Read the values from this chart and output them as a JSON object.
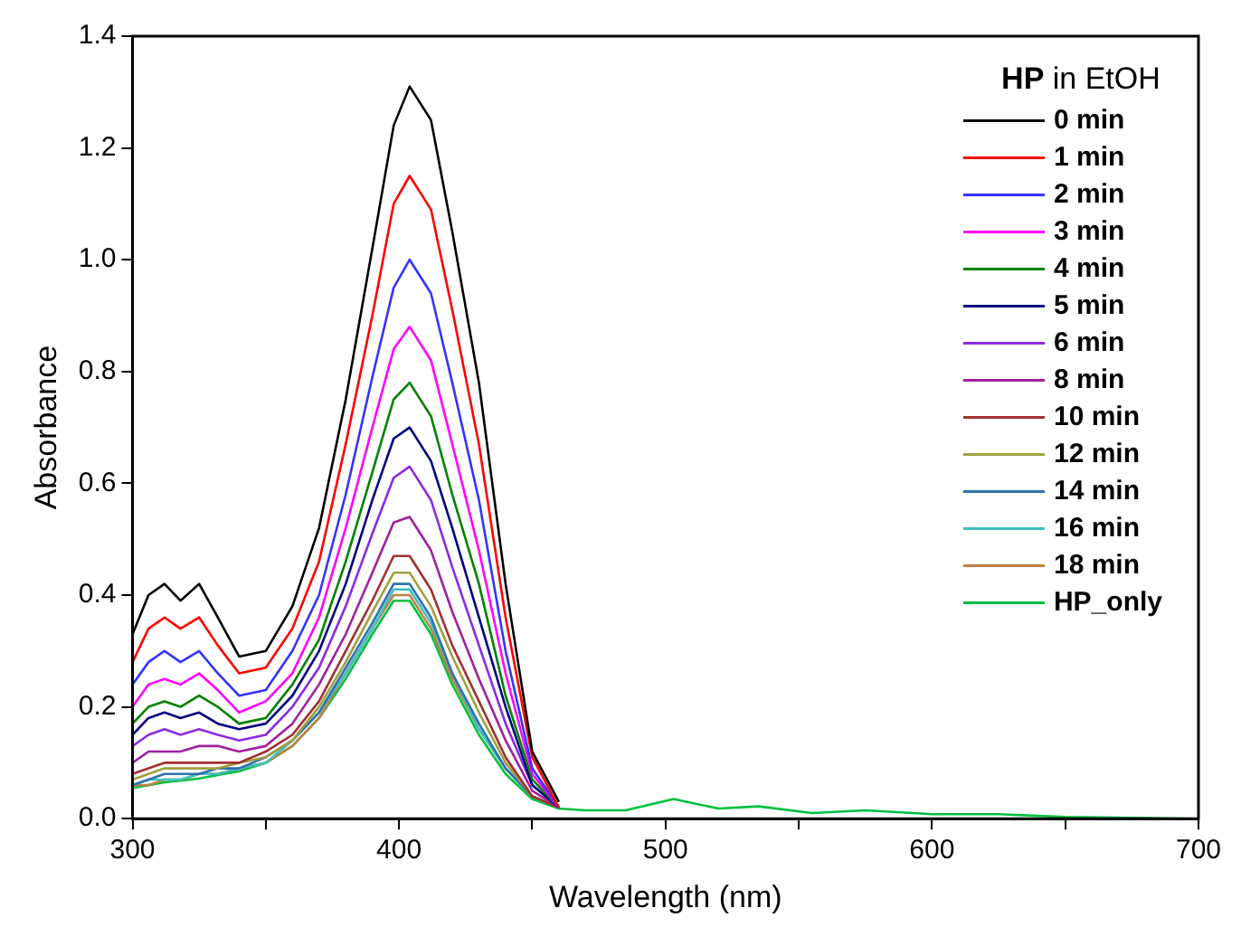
{
  "chart_data": {
    "type": "line",
    "xlabel": "Wavelength (nm)",
    "ylabel": "Absorbance",
    "legend_title": "HP in EtOH",
    "x": [
      300,
      306,
      312,
      318,
      325,
      332,
      340,
      350,
      360,
      370,
      380,
      390,
      398,
      404,
      412,
      420,
      430,
      440,
      450,
      460,
      470,
      485,
      503,
      520,
      535,
      555,
      575,
      600,
      625,
      650,
      700
    ],
    "series": [
      {
        "name": "0 min",
        "color": "#000000",
        "values": [
          0.33,
          0.4,
          0.42,
          0.39,
          0.42,
          0.36,
          0.29,
          0.3,
          0.38,
          0.52,
          0.75,
          1.02,
          1.24,
          1.31,
          1.25,
          1.05,
          0.78,
          0.42,
          0.12,
          0.03,
          null,
          null,
          null,
          null,
          null,
          null,
          null,
          null,
          null,
          null,
          null
        ]
      },
      {
        "name": "1 min",
        "color": "#ff0000",
        "values": [
          0.28,
          0.34,
          0.36,
          0.34,
          0.36,
          0.31,
          0.26,
          0.27,
          0.34,
          0.46,
          0.67,
          0.9,
          1.1,
          1.15,
          1.09,
          0.91,
          0.67,
          0.36,
          0.11,
          0.02,
          null,
          null,
          null,
          null,
          null,
          null,
          null,
          null,
          null,
          null,
          null
        ]
      },
      {
        "name": "2 min",
        "color": "#3333ff",
        "values": [
          0.24,
          0.28,
          0.3,
          0.28,
          0.3,
          0.26,
          0.22,
          0.23,
          0.3,
          0.4,
          0.58,
          0.79,
          0.95,
          1.0,
          0.94,
          0.78,
          0.57,
          0.3,
          0.09,
          0.02,
          null,
          null,
          null,
          null,
          null,
          null,
          null,
          null,
          null,
          null,
          null
        ]
      },
      {
        "name": "3 min",
        "color": "#ff00ff",
        "values": [
          0.2,
          0.24,
          0.25,
          0.24,
          0.26,
          0.23,
          0.19,
          0.21,
          0.26,
          0.36,
          0.52,
          0.7,
          0.84,
          0.88,
          0.82,
          0.67,
          0.48,
          0.26,
          0.08,
          0.02,
          null,
          null,
          null,
          null,
          null,
          null,
          null,
          null,
          null,
          null,
          null
        ]
      },
      {
        "name": "4 min",
        "color": "#008000",
        "values": [
          0.17,
          0.2,
          0.21,
          0.2,
          0.22,
          0.2,
          0.17,
          0.18,
          0.24,
          0.32,
          0.46,
          0.62,
          0.75,
          0.78,
          0.72,
          0.58,
          0.42,
          0.22,
          0.07,
          0.02,
          null,
          null,
          null,
          null,
          null,
          null,
          null,
          null,
          null,
          null,
          null
        ]
      },
      {
        "name": "5 min",
        "color": "#000080",
        "values": [
          0.15,
          0.18,
          0.19,
          0.18,
          0.19,
          0.17,
          0.16,
          0.17,
          0.22,
          0.3,
          0.42,
          0.57,
          0.68,
          0.7,
          0.64,
          0.52,
          0.36,
          0.2,
          0.06,
          0.02,
          null,
          null,
          null,
          null,
          null,
          null,
          null,
          null,
          null,
          null,
          null
        ]
      },
      {
        "name": "6 min",
        "color": "#8a2be2",
        "values": [
          0.13,
          0.15,
          0.16,
          0.15,
          0.16,
          0.15,
          0.14,
          0.15,
          0.2,
          0.27,
          0.38,
          0.51,
          0.61,
          0.63,
          0.57,
          0.45,
          0.31,
          0.17,
          0.06,
          0.02,
          null,
          null,
          null,
          null,
          null,
          null,
          null,
          null,
          null,
          null,
          null
        ]
      },
      {
        "name": "8 min",
        "color": "#a020a0",
        "values": [
          0.1,
          0.12,
          0.12,
          0.12,
          0.13,
          0.13,
          0.12,
          0.13,
          0.17,
          0.24,
          0.33,
          0.44,
          0.53,
          0.54,
          0.48,
          0.37,
          0.25,
          0.14,
          0.05,
          0.02,
          null,
          null,
          null,
          null,
          null,
          null,
          null,
          null,
          null,
          null,
          null
        ]
      },
      {
        "name": "10 min",
        "color": "#a03030",
        "values": [
          0.08,
          0.09,
          0.1,
          0.1,
          0.1,
          0.1,
          0.1,
          0.12,
          0.15,
          0.21,
          0.3,
          0.39,
          0.47,
          0.47,
          0.41,
          0.31,
          0.21,
          0.11,
          0.04,
          0.02,
          null,
          null,
          null,
          null,
          null,
          null,
          null,
          null,
          null,
          null,
          null
        ]
      },
      {
        "name": "12 min",
        "color": "#a0a040",
        "values": [
          0.07,
          0.08,
          0.09,
          0.09,
          0.09,
          0.09,
          0.1,
          0.11,
          0.14,
          0.2,
          0.28,
          0.37,
          0.44,
          0.44,
          0.38,
          0.29,
          0.19,
          0.1,
          0.04,
          0.02,
          null,
          null,
          null,
          null,
          null,
          null,
          null,
          null,
          null,
          null,
          null
        ]
      },
      {
        "name": "14 min",
        "color": "#3070b0",
        "values": [
          0.06,
          0.07,
          0.08,
          0.08,
          0.08,
          0.09,
          0.09,
          0.11,
          0.14,
          0.19,
          0.27,
          0.35,
          0.42,
          0.42,
          0.36,
          0.26,
          0.17,
          0.09,
          0.04,
          0.02,
          null,
          null,
          null,
          null,
          null,
          null,
          null,
          null,
          null,
          null,
          null
        ]
      },
      {
        "name": "16 min",
        "color": "#40c0c0",
        "values": [
          0.06,
          0.07,
          0.07,
          0.07,
          0.08,
          0.08,
          0.09,
          0.1,
          0.14,
          0.19,
          0.26,
          0.34,
          0.41,
          0.41,
          0.35,
          0.26,
          0.16,
          0.09,
          0.04,
          0.02,
          null,
          null,
          null,
          null,
          null,
          null,
          null,
          null,
          null,
          null,
          null
        ]
      },
      {
        "name": "18 min",
        "color": "#c08040",
        "values": [
          0.06,
          0.06,
          0.07,
          0.07,
          0.08,
          0.08,
          0.09,
          0.1,
          0.13,
          0.18,
          0.26,
          0.34,
          0.4,
          0.4,
          0.34,
          0.25,
          0.16,
          0.09,
          0.04,
          0.02,
          null,
          null,
          null,
          null,
          null,
          null,
          null,
          null,
          null,
          null,
          null
        ]
      },
      {
        "name": "HP_only",
        "color": "#00c040",
        "values": [
          0.055,
          0.06,
          0.065,
          0.068,
          0.072,
          0.078,
          0.085,
          0.1,
          0.13,
          0.18,
          0.25,
          0.33,
          0.39,
          0.39,
          0.33,
          0.24,
          0.15,
          0.08,
          0.035,
          0.018,
          0.015,
          0.015,
          0.035,
          0.018,
          0.022,
          0.01,
          0.015,
          0.008,
          0.008,
          0.003,
          0
        ]
      }
    ],
    "xlim": [
      300,
      700
    ],
    "xticks": [
      300,
      {
        "value": 350,
        "label": null
      },
      400,
      {
        "value": 450,
        "label": null
      },
      500,
      {
        "value": 550,
        "label": null
      },
      600,
      {
        "value": 650,
        "label": null
      },
      700
    ],
    "ylim": [
      0,
      1.4
    ],
    "yticks": [
      {
        "value": 0,
        "label": "0.0"
      },
      0.2,
      0.4,
      0.6,
      0.8,
      {
        "value": 1,
        "label": "1.0"
      },
      1.2,
      1.4
    ],
    "grid": false,
    "legend": "top right",
    "marker": "none",
    "line_style": "solid"
  }
}
